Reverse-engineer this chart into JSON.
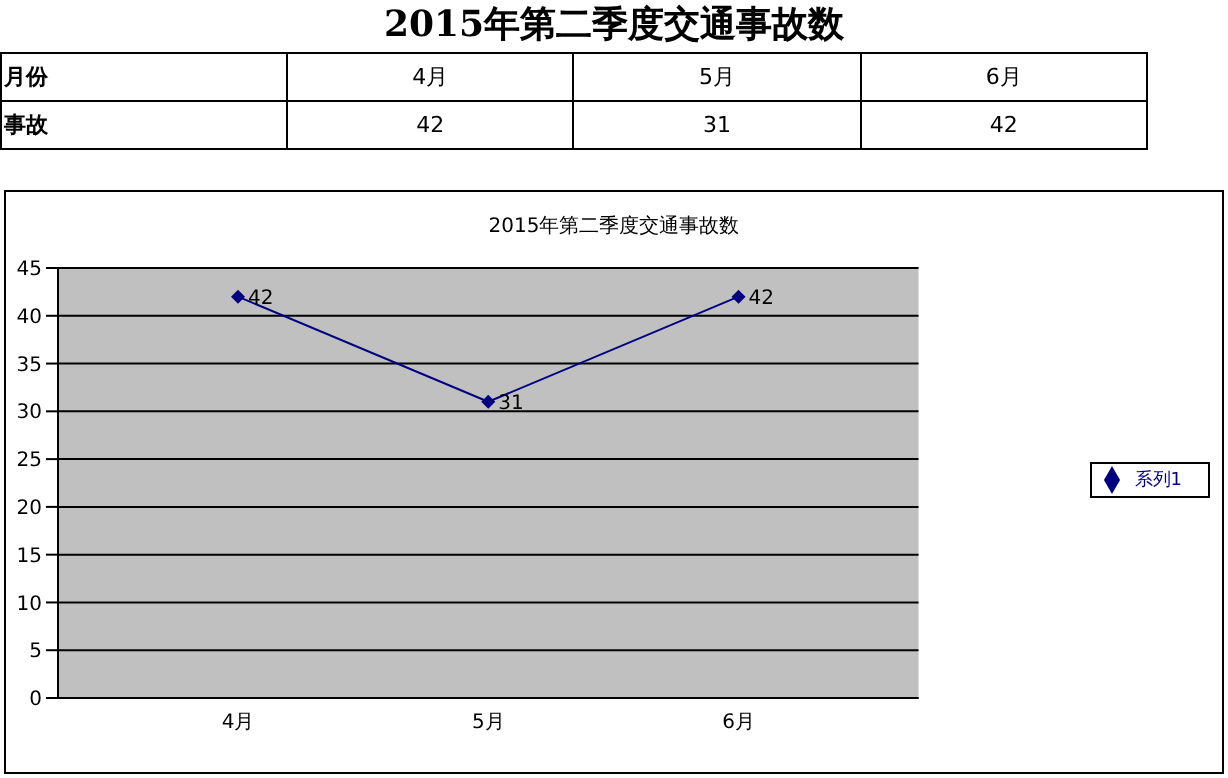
{
  "chart_data": [
    {
      "type": "other",
      "title": "2015年第二季度交通事故数",
      "annotations": [
        "月份",
        "事故"
      ],
      "categories": [
        "4月",
        "5月",
        "6月"
      ],
      "values": [
        42,
        31,
        42
      ],
      "data_labels": true
    },
    {
      "type": "line",
      "title": "2015年第二季度交通事故数",
      "categories": [
        "4月",
        "5月",
        "6月"
      ],
      "series": [
        {
          "name": "系列1",
          "color": "#000080",
          "values": [
            42,
            31,
            42
          ]
        }
      ],
      "ylim": [
        0,
        45
      ],
      "yticks": [
        0,
        5,
        10,
        15,
        20,
        25,
        30,
        35,
        40,
        45
      ],
      "grid": "y",
      "legend": "right",
      "marker": "diamond",
      "line_style": "solid",
      "data_labels": true
    }
  ]
}
